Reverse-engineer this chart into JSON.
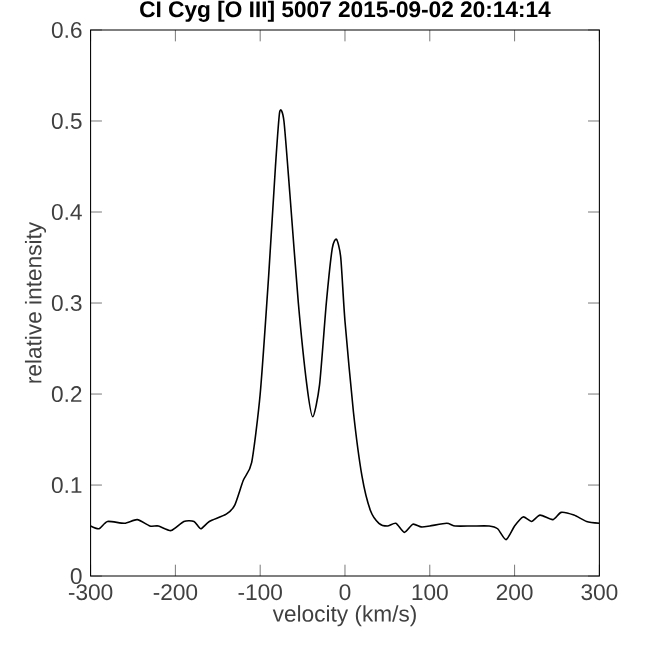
{
  "chart_data": {
    "type": "line",
    "title": "CI Cyg   [O III] 5007    2015-09-02   20:14:14",
    "xlabel": "velocity (km/s)",
    "ylabel": "relative intensity",
    "xlim": [
      -300,
      300
    ],
    "ylim": [
      0,
      0.6
    ],
    "xticks": [
      -300,
      -200,
      -100,
      0,
      100,
      200,
      300
    ],
    "yticks": [
      0,
      0.1,
      0.2,
      0.3,
      0.4,
      0.5,
      0.6
    ],
    "grid": false,
    "marker": "none",
    "line_style": "solid",
    "series": [
      {
        "color": "#000000",
        "x": [
          -300,
          -290,
          -280,
          -260,
          -245,
          -230,
          -220,
          -205,
          -190,
          -178,
          -170,
          -160,
          -140,
          -130,
          -120,
          -110,
          -100,
          -90,
          -82,
          -77,
          -72,
          -65,
          -55,
          -45,
          -38,
          -30,
          -22,
          -15,
          -10,
          -5,
          0,
          10,
          20,
          30,
          40,
          50,
          60,
          70,
          80,
          90,
          100,
          120,
          130,
          150,
          170,
          180,
          190,
          200,
          210,
          220,
          230,
          245,
          255,
          270,
          285,
          300
        ],
        "values": [
          0.055,
          0.052,
          0.06,
          0.058,
          0.062,
          0.055,
          0.055,
          0.05,
          0.06,
          0.06,
          0.052,
          0.06,
          0.068,
          0.078,
          0.105,
          0.125,
          0.2,
          0.33,
          0.45,
          0.51,
          0.5,
          0.42,
          0.3,
          0.21,
          0.175,
          0.21,
          0.3,
          0.36,
          0.37,
          0.35,
          0.28,
          0.18,
          0.11,
          0.072,
          0.058,
          0.055,
          0.058,
          0.048,
          0.057,
          0.054,
          0.055,
          0.058,
          0.055,
          0.055,
          0.055,
          0.052,
          0.04,
          0.055,
          0.065,
          0.06,
          0.067,
          0.062,
          0.07,
          0.067,
          0.06,
          0.058
        ]
      }
    ]
  }
}
